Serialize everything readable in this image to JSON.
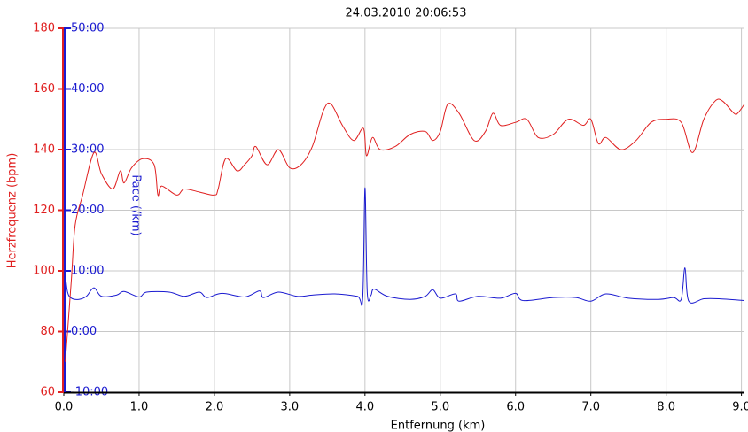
{
  "chart_data": {
    "type": "line",
    "title": "24.03.2010 20:06:53",
    "xlabel": "Entfernung (km)",
    "ylabel": "Herzfrequenz (bpm)",
    "y2label": "Pace (/km)",
    "xlim": [
      0,
      9.04
    ],
    "xticks": [
      {
        "value": 0,
        "label": "0.0"
      },
      {
        "value": 1,
        "label": "1.0"
      },
      {
        "value": 2,
        "label": "2.0"
      },
      {
        "value": 3,
        "label": "3.0"
      },
      {
        "value": 4,
        "label": "4.0"
      },
      {
        "value": 5,
        "label": "5.0"
      },
      {
        "value": 6,
        "label": "6.0"
      },
      {
        "value": 7,
        "label": "7.0"
      },
      {
        "value": 8,
        "label": "8.0"
      },
      {
        "value": 9,
        "label": "9.0"
      }
    ],
    "ylim": [
      60,
      180
    ],
    "yticks": [
      60,
      80,
      100,
      120,
      140,
      160,
      180
    ],
    "y2lim": [
      -10,
      50
    ],
    "y2ticks": [
      {
        "value": -10,
        "label": "-10:00"
      },
      {
        "value": 0,
        "label": "0:00"
      },
      {
        "value": 10,
        "label": "10:00"
      },
      {
        "value": 20,
        "label": "20:00"
      },
      {
        "value": 30,
        "label": "30:00"
      },
      {
        "value": 40,
        "label": "40:00"
      },
      {
        "value": 50,
        "label": "50:00"
      }
    ],
    "grid": true,
    "ycolor": "#e02020",
    "y2color": "#1a1ad0",
    "series": [
      {
        "name": "Herzfrequenz",
        "color": "#e02020",
        "x": [
          0.02,
          0.1,
          0.15,
          0.25,
          0.4,
          0.5,
          0.65,
          0.75,
          0.8,
          0.9,
          1.05,
          1.2,
          1.25,
          1.3,
          1.5,
          1.6,
          1.8,
          2.0,
          2.05,
          2.15,
          2.3,
          2.4,
          2.5,
          2.55,
          2.7,
          2.85,
          3.0,
          3.15,
          3.3,
          3.45,
          3.55,
          3.7,
          3.85,
          3.98,
          4.02,
          4.1,
          4.2,
          4.4,
          4.6,
          4.8,
          4.9,
          5.0,
          5.1,
          5.25,
          5.45,
          5.6,
          5.7,
          5.8,
          6.0,
          6.15,
          6.3,
          6.5,
          6.7,
          6.9,
          7.0,
          7.1,
          7.2,
          7.4,
          7.6,
          7.8,
          8.0,
          8.2,
          8.35,
          8.5,
          8.65,
          8.75,
          8.9,
          8.95,
          9.04
        ],
        "values": [
          70,
          97,
          115,
          125,
          139,
          132,
          127,
          133,
          129,
          134,
          137,
          135,
          125,
          128,
          125,
          127,
          126,
          125,
          127,
          137,
          133,
          135,
          138,
          141,
          135,
          140,
          134,
          135,
          141,
          153,
          155,
          148,
          143,
          147,
          138,
          144,
          140,
          141,
          145,
          146,
          143,
          146,
          155,
          152,
          143,
          146,
          152,
          148,
          149,
          150,
          144,
          145,
          150,
          148,
          150,
          142,
          144,
          140,
          143,
          149,
          150,
          149,
          139,
          150,
          156,
          156,
          152,
          152,
          155
        ]
      },
      {
        "name": "Pace",
        "color": "#1a1ad0",
        "axis": "y2",
        "x": [
          0.02,
          0.05,
          0.1,
          0.2,
          0.3,
          0.4,
          0.5,
          0.7,
          0.8,
          1.0,
          1.1,
          1.4,
          1.6,
          1.8,
          1.9,
          2.1,
          2.4,
          2.6,
          2.65,
          2.85,
          3.1,
          3.3,
          3.6,
          3.9,
          3.97,
          4.0,
          4.03,
          4.08,
          4.12,
          4.3,
          4.6,
          4.8,
          4.9,
          5.0,
          5.2,
          5.25,
          5.5,
          5.8,
          6.0,
          6.1,
          6.5,
          6.8,
          7.0,
          7.2,
          7.5,
          7.9,
          8.1,
          8.2,
          8.25,
          8.3,
          8.5,
          8.7,
          9.04
        ],
        "values": [
          9.4,
          6.5,
          5.5,
          5.3,
          5.8,
          7.2,
          5.8,
          6,
          6.6,
          5.7,
          6.5,
          6.5,
          5.8,
          6.5,
          5.6,
          6.3,
          5.7,
          6.7,
          5.6,
          6.5,
          5.8,
          6,
          6.2,
          5.8,
          5.5,
          23.7,
          6.5,
          6,
          7,
          5.8,
          5.3,
          5.8,
          6.9,
          5.5,
          6.2,
          5,
          5.8,
          5.5,
          6.3,
          5.1,
          5.6,
          5.6,
          5,
          6.2,
          5.5,
          5.3,
          5.6,
          5.3,
          10.5,
          5,
          5.4,
          5.4,
          5.1
        ]
      }
    ]
  }
}
